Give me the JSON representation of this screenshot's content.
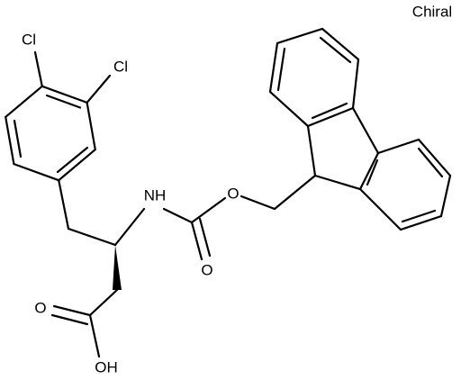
{
  "note_label": "Chiral",
  "atoms": [
    {
      "label": "Cl"
    },
    {
      "label": "Cl"
    },
    {
      "label": "NH"
    },
    {
      "label": "O"
    },
    {
      "label": "O"
    },
    {
      "label": "O"
    },
    {
      "label": "OH"
    }
  ]
}
